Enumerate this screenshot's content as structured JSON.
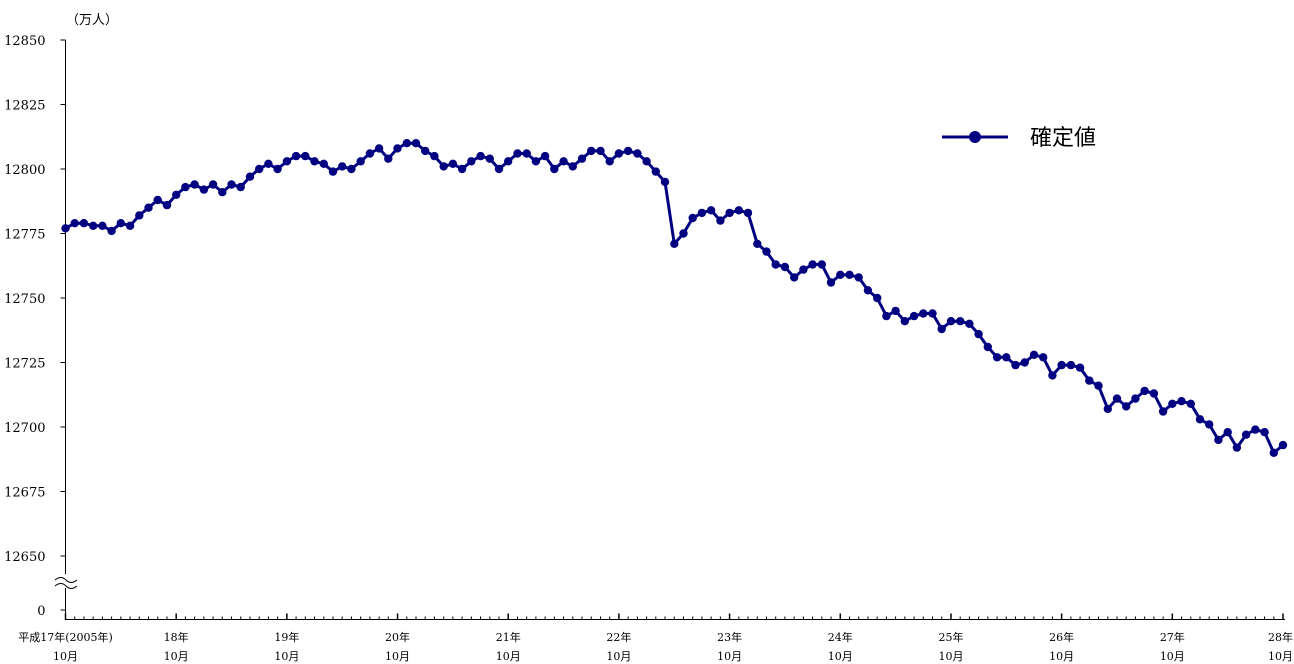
{
  "chart_data": {
    "type": "line",
    "title": "",
    "unit_label": "（万人）",
    "ylabel": "",
    "xlabel": "",
    "ylim": [
      12650,
      12850
    ],
    "y_ticks": [
      "12850",
      "12825",
      "12800",
      "12775",
      "12750",
      "12725",
      "12700",
      "12675",
      "12650",
      "0"
    ],
    "axis_break": true,
    "grid": false,
    "legend_position": "top-right",
    "x_tick_labels": [
      {
        "year": "平成17年(2005年)",
        "month": "10月"
      },
      {
        "year": "18年",
        "month": "10月"
      },
      {
        "year": "19年",
        "month": "10月"
      },
      {
        "year": "20年",
        "month": "10月"
      },
      {
        "year": "21年",
        "month": "10月"
      },
      {
        "year": "22年",
        "month": "10月"
      },
      {
        "year": "23年",
        "month": "10月"
      },
      {
        "year": "24年",
        "month": "10月"
      },
      {
        "year": "25年",
        "month": "10月"
      },
      {
        "year": "26年",
        "month": "10月"
      },
      {
        "year": "27年",
        "month": "10月"
      },
      {
        "year": "28年",
        "month": "10月"
      }
    ],
    "series": [
      {
        "name": "確定値",
        "color": "#000080",
        "values": [
          12777,
          12779,
          12779,
          12778,
          12778,
          12776,
          12779,
          12778,
          12782,
          12785,
          12788,
          12786,
          12790,
          12793,
          12794,
          12792,
          12794,
          12791,
          12794,
          12793,
          12797,
          12800,
          12802,
          12800,
          12803,
          12805,
          12805,
          12803,
          12802,
          12799,
          12801,
          12800,
          12803,
          12806,
          12808,
          12804,
          12808,
          12810,
          12810,
          12807,
          12805,
          12801,
          12802,
          12800,
          12803,
          12805,
          12804,
          12800,
          12803,
          12806,
          12806,
          12803,
          12805,
          12800,
          12803,
          12801,
          12804,
          12807,
          12807,
          12803,
          12806,
          12807,
          12806,
          12803,
          12799,
          12795,
          12771,
          12775,
          12781,
          12783,
          12784,
          12780,
          12783,
          12784,
          12783,
          12771,
          12768,
          12763,
          12762,
          12758,
          12761,
          12763,
          12763,
          12756,
          12759,
          12759,
          12758,
          12753,
          12750,
          12743,
          12745,
          12741,
          12743,
          12744,
          12744,
          12738,
          12741,
          12741,
          12740,
          12736,
          12731,
          12727,
          12727,
          12724,
          12725,
          12728,
          12727,
          12720,
          12724,
          12724,
          12723,
          12718,
          12716,
          12707,
          12711,
          12708,
          12711,
          12714,
          12713,
          12706,
          12709,
          12710,
          12709,
          12703,
          12701,
          12695,
          12698,
          12692,
          12697,
          12699,
          12698,
          12690,
          12693
        ]
      }
    ]
  }
}
